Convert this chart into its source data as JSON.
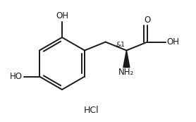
{
  "background_color": "#ffffff",
  "line_color": "#1a1a1a",
  "text_color": "#1a1a1a",
  "line_width": 1.4,
  "font_size": 8.5,
  "fig_width": 2.78,
  "fig_height": 1.73,
  "dpi": 100,
  "stereo_label": "&1",
  "hcl_label": "HCl",
  "oh_top": "OH",
  "ho_left": "HO",
  "o_label": "O",
  "oh_label": "OH",
  "nh2_label": "NH₂"
}
